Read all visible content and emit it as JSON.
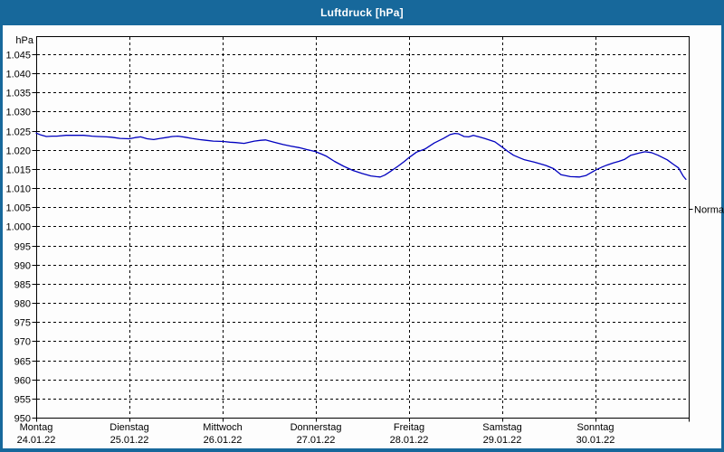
{
  "window": {
    "title": "Luftdruck [hPa]"
  },
  "colors": {
    "titlebar": "#17689b",
    "window_border": "#17689b",
    "plot_background": "#fdfdfd",
    "plot_border": "#000000",
    "gridline": "#000000",
    "line": "#0000bf",
    "text": "#000000",
    "title_text": "#ffffff"
  },
  "chart_data": {
    "type": "line",
    "title": "Luftdruck [hPa]",
    "ylabel": "hPa",
    "xlabel": "",
    "grid": true,
    "legend": false,
    "ylim": [
      950,
      1045
    ],
    "ytick_step": 5,
    "yticks": [
      {
        "value": 1045,
        "label": "1.045"
      },
      {
        "value": 1040,
        "label": "1.040"
      },
      {
        "value": 1035,
        "label": "1.035"
      },
      {
        "value": 1030,
        "label": "1.030"
      },
      {
        "value": 1025,
        "label": "1.025"
      },
      {
        "value": 1020,
        "label": "1.020"
      },
      {
        "value": 1015,
        "label": "1.015"
      },
      {
        "value": 1010,
        "label": "1.010"
      },
      {
        "value": 1005,
        "label": "1.005"
      },
      {
        "value": 1000,
        "label": "1.000"
      },
      {
        "value": 995,
        "label": "995"
      },
      {
        "value": 990,
        "label": "990"
      },
      {
        "value": 985,
        "label": "985"
      },
      {
        "value": 980,
        "label": "980"
      },
      {
        "value": 975,
        "label": "975"
      },
      {
        "value": 970,
        "label": "970"
      },
      {
        "value": 965,
        "label": "965"
      },
      {
        "value": 960,
        "label": "960"
      },
      {
        "value": 955,
        "label": "955"
      },
      {
        "value": 950,
        "label": "950"
      }
    ],
    "days": [
      {
        "name": "Montag",
        "date": "24.01.22"
      },
      {
        "name": "Dienstag",
        "date": "25.01.22"
      },
      {
        "name": "Mittwoch",
        "date": "26.01.22"
      },
      {
        "name": "Donnerstag",
        "date": "27.01.22"
      },
      {
        "name": "Freitag",
        "date": "28.01.22"
      },
      {
        "name": "Samstag",
        "date": "29.01.22"
      },
      {
        "name": "Sonntag",
        "date": "30.01.22"
      }
    ],
    "normal_marker": {
      "label": "Normal",
      "value": 1004.5
    },
    "series": [
      {
        "name": "Luftdruck",
        "unit": "hPa",
        "color": "#0000bf",
        "points": [
          [
            0.0,
            1024.4
          ],
          [
            0.05,
            1023.9
          ],
          [
            0.11,
            1023.5
          ],
          [
            0.17,
            1023.6
          ],
          [
            0.22,
            1023.6
          ],
          [
            0.32,
            1023.8
          ],
          [
            0.42,
            1023.8
          ],
          [
            0.51,
            1023.8
          ],
          [
            0.6,
            1023.6
          ],
          [
            0.66,
            1023.5
          ],
          [
            0.75,
            1023.4
          ],
          [
            0.81,
            1023.3
          ],
          [
            0.9,
            1023.0
          ],
          [
            1.0,
            1022.9
          ],
          [
            1.06,
            1023.2
          ],
          [
            1.12,
            1023.4
          ],
          [
            1.19,
            1022.9
          ],
          [
            1.26,
            1022.7
          ],
          [
            1.33,
            1023.0
          ],
          [
            1.39,
            1023.2
          ],
          [
            1.46,
            1023.5
          ],
          [
            1.52,
            1023.6
          ],
          [
            1.6,
            1023.3
          ],
          [
            1.67,
            1023.0
          ],
          [
            1.75,
            1022.7
          ],
          [
            1.82,
            1022.5
          ],
          [
            1.9,
            1022.3
          ],
          [
            2.01,
            1022.2
          ],
          [
            2.08,
            1022.0
          ],
          [
            2.14,
            1021.9
          ],
          [
            2.23,
            1021.7
          ],
          [
            2.29,
            1022.0
          ],
          [
            2.34,
            1022.3
          ],
          [
            2.41,
            1022.5
          ],
          [
            2.46,
            1022.6
          ],
          [
            2.55,
            1022.0
          ],
          [
            2.65,
            1021.4
          ],
          [
            2.73,
            1021.0
          ],
          [
            2.82,
            1020.6
          ],
          [
            2.9,
            1020.1
          ],
          [
            2.99,
            1019.6
          ],
          [
            3.06,
            1018.9
          ],
          [
            3.11,
            1018.4
          ],
          [
            3.2,
            1017.0
          ],
          [
            3.3,
            1015.7
          ],
          [
            3.4,
            1014.6
          ],
          [
            3.5,
            1013.8
          ],
          [
            3.59,
            1013.2
          ],
          [
            3.65,
            1013.0
          ],
          [
            3.69,
            1012.9
          ],
          [
            3.74,
            1013.4
          ],
          [
            3.79,
            1014.2
          ],
          [
            3.88,
            1015.7
          ],
          [
            3.95,
            1017.0
          ],
          [
            4.0,
            1018.0
          ],
          [
            4.08,
            1019.4
          ],
          [
            4.17,
            1020.2
          ],
          [
            4.27,
            1021.8
          ],
          [
            4.37,
            1023.0
          ],
          [
            4.44,
            1024.0
          ],
          [
            4.49,
            1024.3
          ],
          [
            4.53,
            1024.2
          ],
          [
            4.59,
            1023.5
          ],
          [
            4.64,
            1023.4
          ],
          [
            4.69,
            1023.8
          ],
          [
            4.75,
            1023.4
          ],
          [
            4.81,
            1023.0
          ],
          [
            4.92,
            1022.1
          ],
          [
            5.0,
            1020.7
          ],
          [
            5.06,
            1019.6
          ],
          [
            5.12,
            1018.6
          ],
          [
            5.18,
            1018.0
          ],
          [
            5.24,
            1017.4
          ],
          [
            5.34,
            1016.8
          ],
          [
            5.4,
            1016.4
          ],
          [
            5.47,
            1015.9
          ],
          [
            5.55,
            1015.1
          ],
          [
            5.63,
            1013.5
          ],
          [
            5.73,
            1013.0
          ],
          [
            5.83,
            1012.9
          ],
          [
            5.9,
            1013.3
          ],
          [
            6.0,
            1014.7
          ],
          [
            6.07,
            1015.5
          ],
          [
            6.12,
            1016.0
          ],
          [
            6.19,
            1016.6
          ],
          [
            6.25,
            1017.0
          ],
          [
            6.31,
            1017.5
          ],
          [
            6.38,
            1018.6
          ],
          [
            6.47,
            1019.2
          ],
          [
            6.53,
            1019.5
          ],
          [
            6.6,
            1019.3
          ],
          [
            6.67,
            1018.6
          ],
          [
            6.77,
            1017.4
          ],
          [
            6.83,
            1016.3
          ],
          [
            6.89,
            1015.3
          ],
          [
            6.94,
            1013.2
          ],
          [
            6.97,
            1012.3
          ]
        ]
      }
    ]
  }
}
